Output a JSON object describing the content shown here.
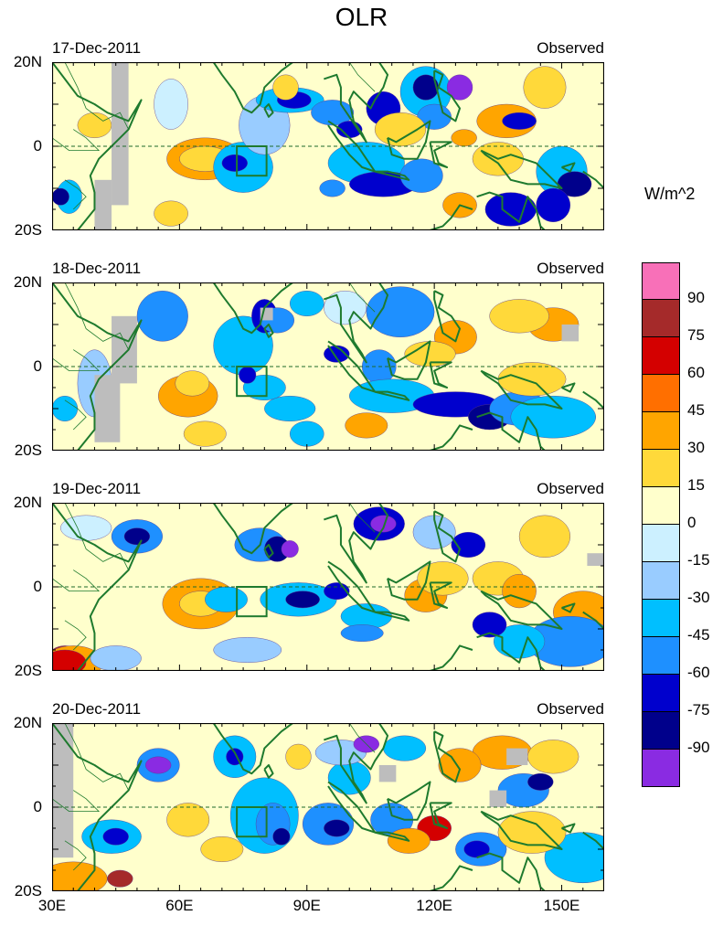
{
  "title": "OLR",
  "units": "W/m^2",
  "chart_data": {
    "type": "heatmap",
    "title": "OLR",
    "units": "W/m^2",
    "x_ticks": [
      "30E",
      "60E",
      "90E",
      "120E",
      "150E"
    ],
    "x_range_deg": [
      30,
      160
    ],
    "y_ticks": [
      "20N",
      "0",
      "20S"
    ],
    "y_range_deg": [
      -20,
      20
    ],
    "colorbar_levels": [
      "90",
      "75",
      "60",
      "45",
      "30",
      "15",
      "0",
      "-15",
      "-30",
      "-45",
      "-60",
      "-75",
      "-90"
    ],
    "colorbar_colors": [
      "#f870b8",
      "#a52a2a",
      "#d40000",
      "#ff6f00",
      "#ffa500",
      "#ffd93a",
      "#ffffcc",
      "#ccf0ff",
      "#99ccff",
      "#00bfff",
      "#1e90ff",
      "#0000cd",
      "#00008b",
      "#8a2be2"
    ],
    "panels": [
      {
        "date": "17-Dec-2011",
        "label": "Observed"
      },
      {
        "date": "18-Dec-2011",
        "label": "Observed"
      },
      {
        "date": "19-Dec-2011",
        "label": "Observed"
      },
      {
        "date": "20-Dec-2011",
        "label": "Observed"
      }
    ]
  }
}
